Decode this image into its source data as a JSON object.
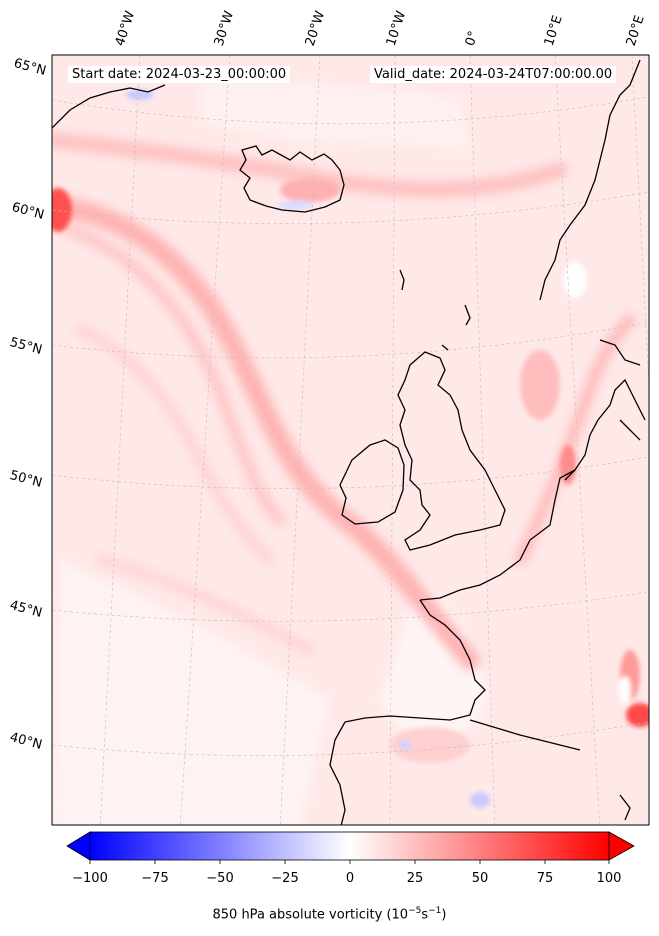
{
  "header": {
    "start_label": "Start date: 2024-03-23_00:00:00",
    "valid_label": "Valid_date: 2024-03-24T07:00:00.00"
  },
  "longitude_labels": [
    "40°W",
    "30°W",
    "20°W",
    "10°W",
    "0°",
    "10°E",
    "20°E"
  ],
  "latitude_labels": [
    "65°N",
    "60°N",
    "55°N",
    "50°N",
    "45°N",
    "40°N"
  ],
  "colorbar": {
    "title": "850 hPa absolute vorticity (10",
    "title_exp1": "−5",
    "title_mid": "s",
    "title_exp2": "−1",
    "title_end": ")",
    "ticks": [
      "−100",
      "−75",
      "−50",
      "−25",
      "0",
      "25",
      "50",
      "75",
      "100"
    ],
    "range": [
      -100,
      100
    ],
    "colormap": "bwr",
    "colors": {
      "min": "#0000ff",
      "mid": "#ffffff",
      "max": "#ff0000"
    }
  },
  "map": {
    "projection": "lambert-conformal",
    "region": "North Atlantic / Western Europe",
    "field": "850 hPa absolute vorticity",
    "background_color": "#ffe6e6",
    "coastline_color": "#000000"
  }
}
